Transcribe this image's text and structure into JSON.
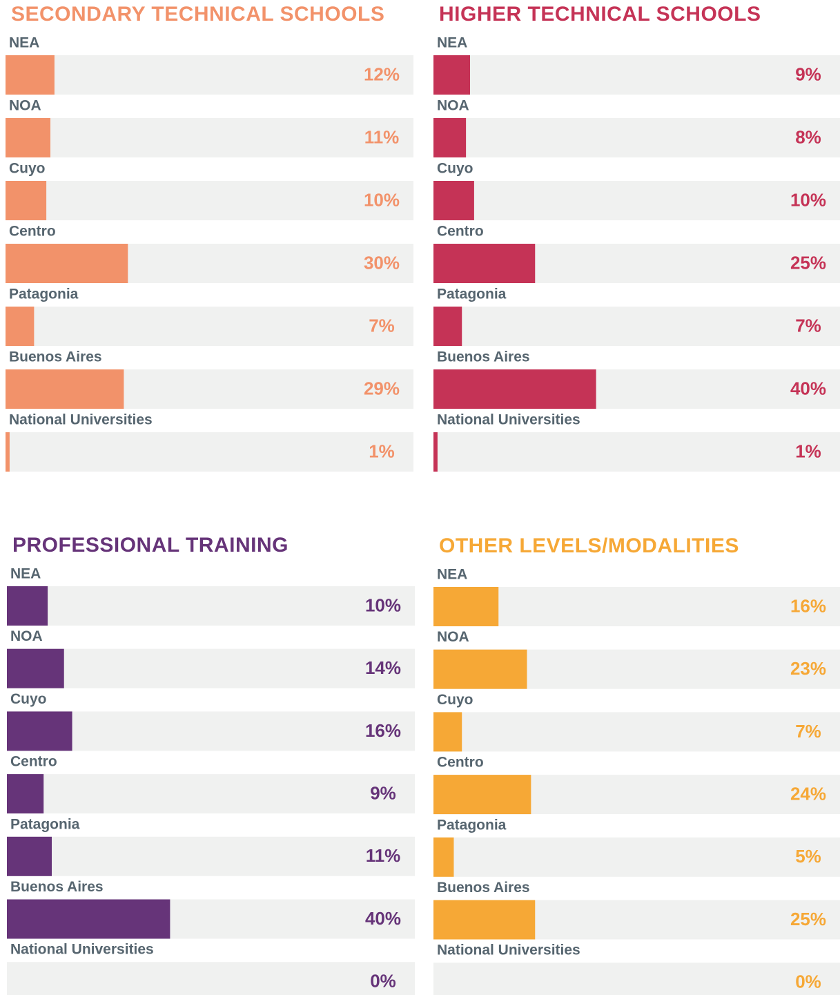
{
  "chart_data": [
    {
      "type": "hbar",
      "title": "SECONDARY TECHNICAL SCHOOLS",
      "color": "#f2926a",
      "categories": [
        "NEA",
        "NOA",
        "Cuyo",
        "Centro",
        "Patagonia",
        "Buenos Aires",
        "National Universities"
      ],
      "values": [
        12,
        11,
        10,
        30,
        7,
        29,
        1
      ],
      "value_labels": [
        "12%",
        "11%",
        "10%",
        "30%",
        "7%",
        "29%",
        "1%"
      ],
      "xlim": [
        0,
        100
      ]
    },
    {
      "type": "hbar",
      "title": "HIGHER TECHNICAL SCHOOLS",
      "color": "#c53356",
      "categories": [
        "NEA",
        "NOA",
        "Cuyo",
        "Centro",
        "Patagonia",
        "Buenos Aires",
        "National Universities"
      ],
      "values": [
        9,
        8,
        10,
        25,
        7,
        40,
        1
      ],
      "value_labels": [
        "9%",
        "8%",
        "10%",
        "25%",
        "7%",
        "40%",
        "1%"
      ],
      "xlim": [
        0,
        100
      ]
    },
    {
      "type": "hbar",
      "title": "PROFESSIONAL TRAINING",
      "color": "#663479",
      "categories": [
        "NEA",
        "NOA",
        "Cuyo",
        "Centro",
        "Patagonia",
        "Buenos Aires",
        "National Universities"
      ],
      "values": [
        10,
        14,
        16,
        9,
        11,
        40,
        0
      ],
      "value_labels": [
        "10%",
        "14%",
        "16%",
        "9%",
        "11%",
        "40%",
        "0%"
      ],
      "xlim": [
        0,
        100
      ]
    },
    {
      "type": "hbar",
      "title": "OTHER LEVELS/MODALITIES",
      "color": "#f6a836",
      "categories": [
        "NEA",
        "NOA",
        "Cuyo",
        "Centro",
        "Patagonia",
        "Buenos Aires",
        "National Universities"
      ],
      "values": [
        16,
        23,
        7,
        24,
        5,
        25,
        0
      ],
      "value_labels": [
        "16%",
        "23%",
        "7%",
        "24%",
        "5%",
        "25%",
        "0%"
      ],
      "xlim": [
        0,
        100
      ]
    }
  ]
}
